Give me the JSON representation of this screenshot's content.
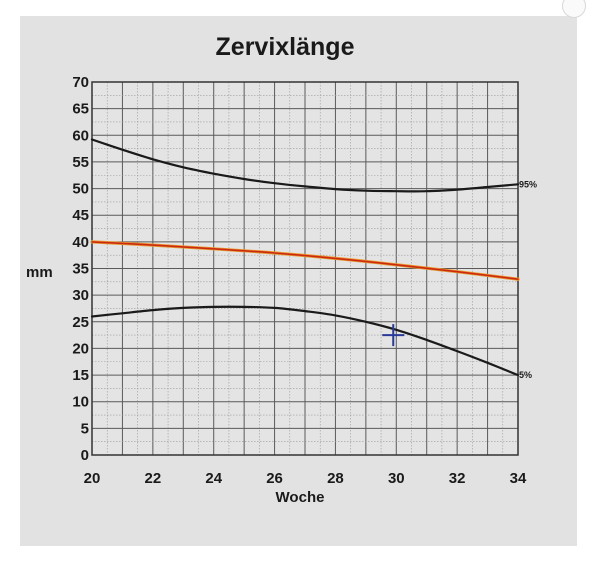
{
  "chart_data": {
    "type": "line",
    "title": "Zervixlänge",
    "xlabel": "Woche",
    "ylabel": "mm",
    "xlim": [
      20,
      34
    ],
    "ylim": [
      0,
      70
    ],
    "x_ticks": [
      20,
      22,
      24,
      26,
      28,
      30,
      32,
      34
    ],
    "y_ticks": [
      0,
      5,
      10,
      15,
      20,
      25,
      30,
      35,
      40,
      45,
      50,
      55,
      60,
      65,
      70
    ],
    "grid": true,
    "series": [
      {
        "name": "95%",
        "color": "#1a1a1a",
        "x": [
          20,
          21,
          22,
          23,
          24,
          25,
          26,
          27,
          28,
          29,
          30,
          31,
          32,
          33,
          34
        ],
        "values": [
          59.2,
          57.3,
          55.5,
          54.0,
          52.8,
          51.8,
          51.0,
          50.4,
          49.9,
          49.6,
          49.5,
          49.5,
          49.8,
          50.3,
          50.8
        ]
      },
      {
        "name": "",
        "color": "#cc2a10",
        "x": [
          20,
          22,
          24,
          26,
          28,
          30,
          32,
          34
        ],
        "values": [
          40.0,
          39.4,
          38.7,
          37.9,
          36.9,
          35.7,
          34.4,
          33.0
        ]
      },
      {
        "name": "5%",
        "color": "#1a1a1a",
        "x": [
          20,
          21,
          22,
          23,
          24,
          25,
          26,
          27,
          28,
          29,
          30,
          31,
          32,
          33,
          34
        ],
        "values": [
          26.0,
          26.6,
          27.2,
          27.6,
          27.8,
          27.8,
          27.6,
          27.0,
          26.2,
          25.0,
          23.5,
          21.6,
          19.5,
          17.3,
          15.0
        ]
      }
    ],
    "measurement": {
      "x": 29.9,
      "y": 22.5,
      "marker": "plus",
      "color": "#2a3a9a"
    }
  }
}
